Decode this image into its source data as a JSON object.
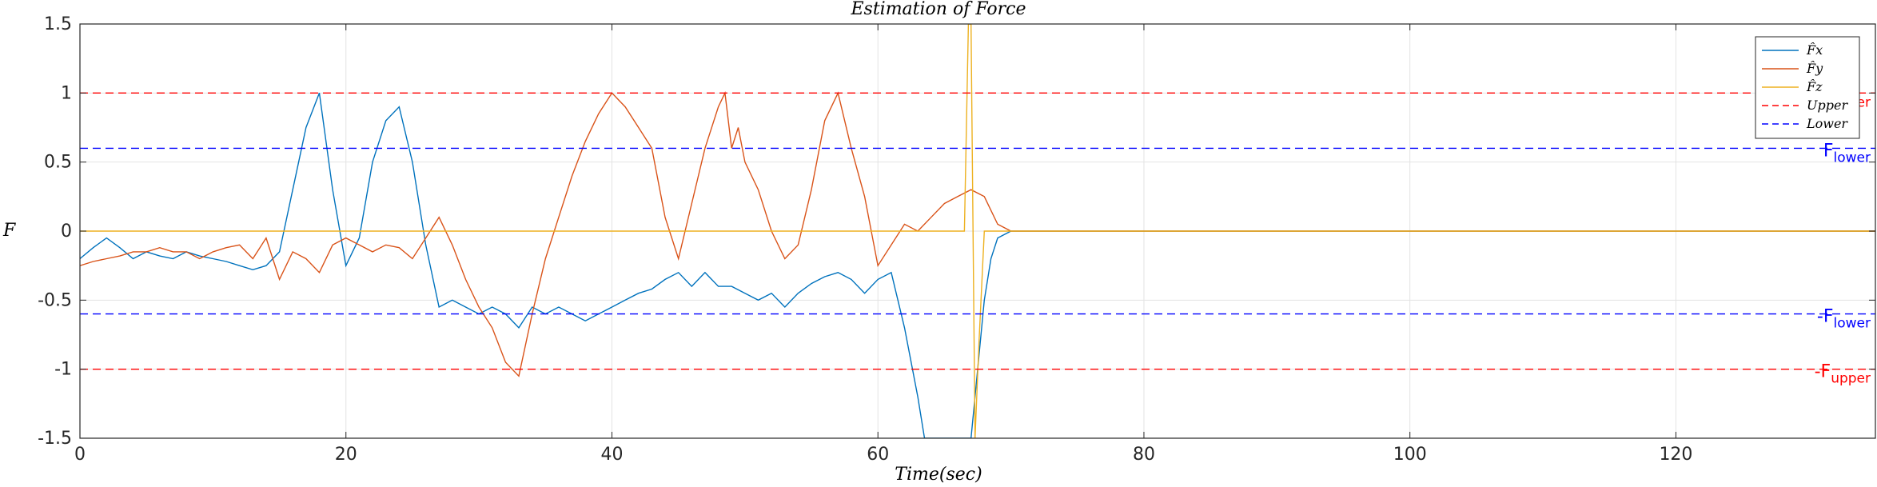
{
  "chart_data": {
    "type": "line",
    "title": "Estimation of Force",
    "xlabel": "Time(sec)",
    "ylabel": "F",
    "xlim": [
      0,
      135
    ],
    "ylim": [
      -1.5,
      1.5
    ],
    "xticks": [
      0,
      20,
      40,
      60,
      80,
      100,
      120
    ],
    "yticks": [
      -1.5,
      -1,
      -0.5,
      0,
      0.5,
      1,
      1.5
    ],
    "xtick_labels": [
      "0",
      "20",
      "40",
      "60",
      "80",
      "100",
      "120"
    ],
    "ytick_labels": [
      "-1.5",
      "-1",
      "-0.5",
      "0",
      "0.5",
      "1",
      "1.5"
    ],
    "grid": true,
    "legend_position": "top-right",
    "series": [
      {
        "name": "F̂x",
        "color": "#0072BD",
        "style": "solid",
        "x": [
          0,
          1,
          2,
          3,
          4,
          5,
          6,
          7,
          8,
          9,
          10,
          11,
          12,
          13,
          14,
          15,
          16,
          17,
          18,
          19,
          20,
          21,
          22,
          23,
          24,
          25,
          26,
          27,
          28,
          29,
          30,
          31,
          32,
          33,
          34,
          35,
          36,
          37,
          38,
          39,
          40,
          41,
          42,
          43,
          44,
          45,
          46,
          47,
          48,
          49,
          50,
          51,
          52,
          53,
          54,
          55,
          56,
          57,
          58,
          59,
          60,
          61,
          62,
          63,
          63.5,
          64,
          67,
          67.5,
          68,
          68.5,
          69,
          70,
          75,
          80,
          85,
          90,
          95,
          100,
          105,
          110,
          115,
          120,
          125,
          130,
          135
        ],
        "y": [
          -0.2,
          -0.12,
          -0.05,
          -0.12,
          -0.2,
          -0.15,
          -0.18,
          -0.2,
          -0.15,
          -0.18,
          -0.2,
          -0.22,
          -0.25,
          -0.28,
          -0.25,
          -0.15,
          0.3,
          0.75,
          1.0,
          0.3,
          -0.25,
          -0.05,
          0.5,
          0.8,
          0.9,
          0.5,
          -0.1,
          -0.55,
          -0.5,
          -0.55,
          -0.6,
          -0.55,
          -0.6,
          -0.7,
          -0.55,
          -0.6,
          -0.55,
          -0.6,
          -0.65,
          -0.6,
          -0.55,
          -0.5,
          -0.45,
          -0.42,
          -0.35,
          -0.3,
          -0.4,
          -0.3,
          -0.4,
          -0.4,
          -0.45,
          -0.5,
          -0.45,
          -0.55,
          -0.45,
          -0.38,
          -0.33,
          -0.3,
          -0.35,
          -0.45,
          -0.35,
          -0.3,
          -0.7,
          -1.2,
          -1.5,
          -1.5,
          -1.5,
          -1.0,
          -0.5,
          -0.2,
          -0.05,
          0.0,
          0.0,
          0.0,
          0.0,
          0.0,
          0.0,
          0.0,
          0.0,
          0.0,
          0.0,
          0.0,
          0.0,
          0.0,
          0.0
        ]
      },
      {
        "name": "F̂y",
        "color": "#D95319",
        "style": "solid",
        "x": [
          0,
          1,
          2,
          3,
          4,
          5,
          6,
          7,
          8,
          9,
          10,
          11,
          12,
          13,
          14,
          15,
          16,
          17,
          18,
          19,
          20,
          21,
          22,
          23,
          24,
          25,
          26,
          27,
          28,
          29,
          30,
          31,
          32,
          33,
          34,
          35,
          36,
          37,
          38,
          39,
          40,
          41,
          42,
          43,
          44,
          45,
          46,
          47,
          48,
          48.5,
          49,
          49.5,
          50,
          51,
          52,
          53,
          54,
          55,
          56,
          57,
          58,
          59,
          60,
          61,
          62,
          63,
          64,
          65,
          66,
          67,
          68,
          69,
          70,
          75,
          80,
          85,
          90,
          95,
          100,
          105,
          110,
          115,
          120,
          125,
          130,
          135
        ],
        "y": [
          -0.25,
          -0.22,
          -0.2,
          -0.18,
          -0.15,
          -0.15,
          -0.12,
          -0.15,
          -0.15,
          -0.2,
          -0.15,
          -0.12,
          -0.1,
          -0.2,
          -0.05,
          -0.35,
          -0.15,
          -0.2,
          -0.3,
          -0.1,
          -0.05,
          -0.1,
          -0.15,
          -0.1,
          -0.12,
          -0.2,
          -0.05,
          0.1,
          -0.1,
          -0.35,
          -0.55,
          -0.7,
          -0.95,
          -1.05,
          -0.6,
          -0.2,
          0.1,
          0.4,
          0.65,
          0.85,
          1.0,
          0.9,
          0.75,
          0.6,
          0.1,
          -0.2,
          0.2,
          0.6,
          0.9,
          1.0,
          0.6,
          0.75,
          0.5,
          0.3,
          0.0,
          -0.2,
          -0.1,
          0.3,
          0.8,
          1.0,
          0.6,
          0.25,
          -0.25,
          -0.1,
          0.05,
          0.0,
          0.1,
          0.2,
          0.25,
          0.3,
          0.25,
          0.05,
          0.0,
          0.0,
          0.0,
          0.0,
          0.0,
          0.0,
          0.0,
          0.0,
          0.0,
          0.0,
          0.0,
          0.0,
          0.0,
          0.0
        ]
      },
      {
        "name": "F̂z",
        "color": "#EDB120",
        "style": "solid",
        "x": [
          0,
          66.5,
          66.8,
          67.0,
          67.3,
          67.6,
          68,
          135
        ],
        "y": [
          0.0,
          0.0,
          1.5,
          1.5,
          -1.5,
          -0.8,
          0.0,
          0.0
        ]
      },
      {
        "name": "Upper",
        "color": "#FF0000",
        "style": "dashed",
        "x": [
          0,
          135
        ],
        "y": [
          1.0,
          1.0
        ]
      },
      {
        "name": "Upper",
        "color": "#FF0000",
        "style": "dashed",
        "x": [
          0,
          135
        ],
        "y": [
          -1.0,
          -1.0
        ]
      },
      {
        "name": "Lower",
        "color": "#0000FF",
        "style": "dashed",
        "x": [
          0,
          135
        ],
        "y": [
          0.6,
          0.6
        ]
      },
      {
        "name": "Lower",
        "color": "#0000FF",
        "style": "dashed",
        "x": [
          0,
          135
        ],
        "y": [
          -0.6,
          -0.6
        ]
      }
    ],
    "annotations": [
      {
        "text": "F",
        "sub": "lower",
        "y": 0.6,
        "color": "#0000FF"
      },
      {
        "text": "-F",
        "sub": "lower",
        "y": -0.6,
        "color": "#0000FF"
      },
      {
        "text": "-F",
        "sub": "upper",
        "y": -1.0,
        "color": "#FF0000"
      },
      {
        "text": "",
        "sub": "er",
        "y": 1.0,
        "color": "#FF0000"
      }
    ],
    "legend": [
      {
        "label": "F̂x",
        "color": "#0072BD",
        "style": "solid"
      },
      {
        "label": "F̂y",
        "color": "#D95319",
        "style": "solid"
      },
      {
        "label": "F̂z",
        "color": "#EDB120",
        "style": "solid"
      },
      {
        "label": "Upper",
        "color": "#FF0000",
        "style": "dashed"
      },
      {
        "label": "Lower",
        "color": "#0000FF",
        "style": "dashed"
      }
    ]
  }
}
